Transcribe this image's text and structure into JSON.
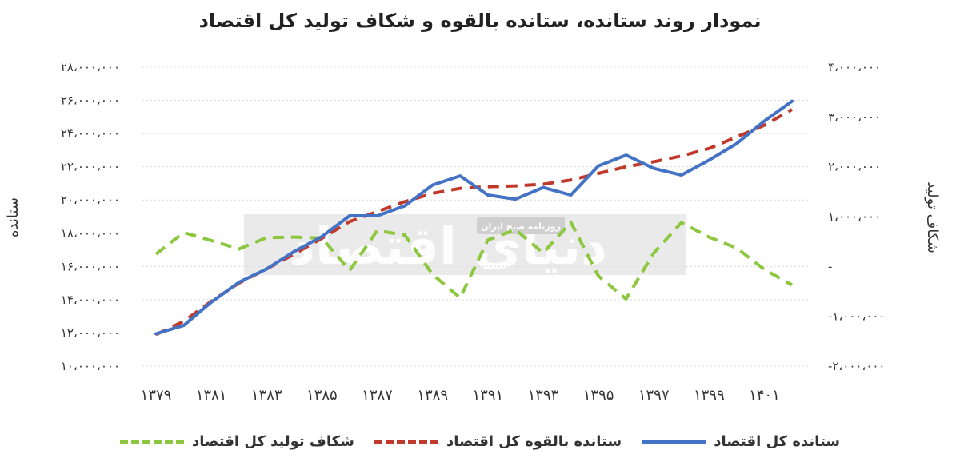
{
  "chart_data": {
    "type": "line",
    "title": "نمودار روند ستانده، ستانده بالقوه و شکاف تولید کل اقتصاد",
    "ylabel_left": "ستانده",
    "ylabel_right": "شکاف تولید",
    "x": [
      1379,
      1380,
      1381,
      1382,
      1383,
      1384,
      1385,
      1386,
      1387,
      1388,
      1389,
      1390,
      1391,
      1392,
      1393,
      1394,
      1395,
      1396,
      1397,
      1398,
      1399,
      1400,
      1401,
      1402
    ],
    "x_tick_labels": [
      "۱۳۷۹",
      "۱۳۸۱",
      "۱۳۸۳",
      "۱۳۸۵",
      "۱۳۸۷",
      "۱۳۸۹",
      "۱۳۹۱",
      "۱۳۹۳",
      "۱۳۹۵",
      "۱۳۹۷",
      "۱۳۹۹",
      "۱۴۰۱"
    ],
    "y_left_ticks": [
      "۱۰،۰۰۰،۰۰۰",
      "۱۲،۰۰۰،۰۰۰",
      "۱۴،۰۰۰،۰۰۰",
      "۱۶،۰۰۰،۰۰۰",
      "۱۸،۰۰۰،۰۰۰",
      "۲۰،۰۰۰،۰۰۰",
      "۲۲،۰۰۰،۰۰۰",
      "۲۴،۰۰۰،۰۰۰",
      "۲۶،۰۰۰،۰۰۰",
      "۲۸،۰۰۰،۰۰۰"
    ],
    "y_right_ticks": [
      "-۲،۰۰۰،۰۰۰",
      "-۱،۰۰۰،۰۰۰",
      "-",
      "۱،۰۰۰،۰۰۰",
      "۲،۰۰۰،۰۰۰",
      "۳،۰۰۰،۰۰۰",
      "۴،۰۰۰،۰۰۰"
    ],
    "ylim_left": [
      10000000,
      28000000
    ],
    "ylim_right": [
      -2000000,
      4000000
    ],
    "grid": true,
    "legend_position": "bottom",
    "series": [
      {
        "name": "ستانده کل اقتصاد",
        "axis": "left",
        "style": "solid",
        "color": "#4472c4",
        "values": [
          11950000,
          12450000,
          13850000,
          15050000,
          15850000,
          16900000,
          17800000,
          19050000,
          19050000,
          19650000,
          20900000,
          21450000,
          20300000,
          20050000,
          20750000,
          20300000,
          22050000,
          22700000,
          21900000,
          21500000,
          22400000,
          23400000,
          24750000,
          25950000
        ]
      },
      {
        "name": "ستانده بالقوه کل اقتصاد",
        "axis": "left",
        "style": "dashed",
        "color": "#c0392b",
        "values": [
          11900000,
          12700000,
          13900000,
          15000000,
          15850000,
          16750000,
          17700000,
          18700000,
          19300000,
          19900000,
          20400000,
          20700000,
          20800000,
          20850000,
          20950000,
          21200000,
          21600000,
          22000000,
          22300000,
          22650000,
          23100000,
          23800000,
          24500000,
          25450000
        ]
      },
      {
        "name": "شکاف تولید کل اقتصاد",
        "axis": "right",
        "style": "dashed",
        "color": "#8dc63f",
        "values": [
          250000,
          680000,
          520000,
          350000,
          580000,
          590000,
          570000,
          -80000,
          720000,
          630000,
          -160000,
          -630000,
          530000,
          740000,
          270000,
          890000,
          -190000,
          -650000,
          270000,
          880000,
          590000,
          370000,
          -60000,
          -370000
        ]
      }
    ],
    "watermark": "دنیای اقتصاد",
    "watermark_sub": "روزنامه صبح ایران"
  }
}
